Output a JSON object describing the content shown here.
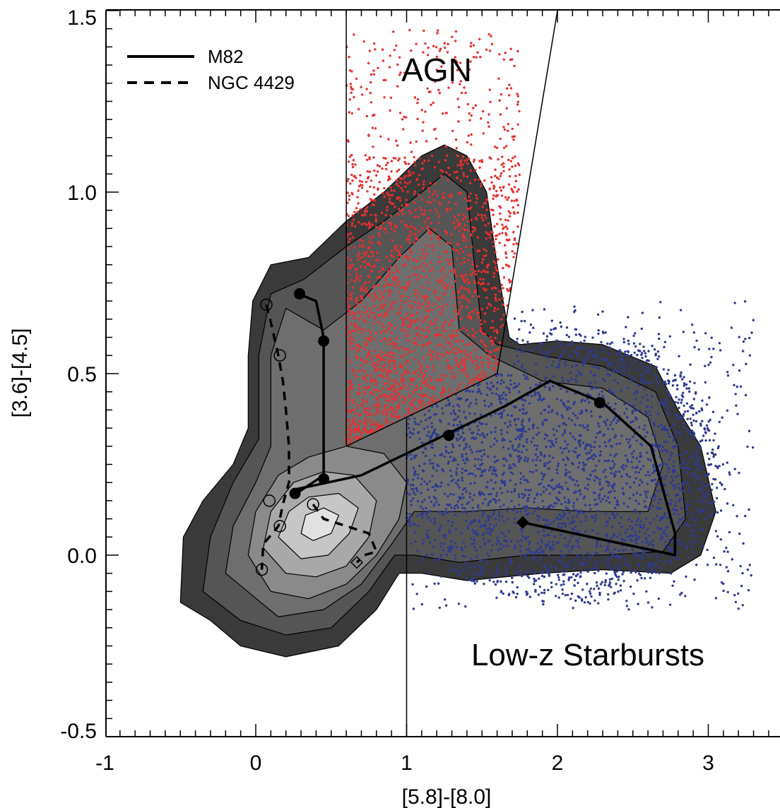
{
  "chart_data": {
    "type": "scatter",
    "xlabel": "[5.8]-[8.0]",
    "ylabel": "[3.6]-[4.5]",
    "xlim": [
      -1,
      3.5
    ],
    "ylim": [
      -0.5,
      1.5
    ],
    "x_ticks": [
      "-1",
      "0",
      "1",
      "2",
      "3"
    ],
    "y_ticks": [
      "-0.5",
      "0.0",
      "0.5",
      "1.0",
      "1.5"
    ],
    "x_tick_values": [
      -1,
      0,
      1,
      2,
      3
    ],
    "y_tick_values": [
      -0.5,
      0.0,
      0.5,
      1.0,
      1.5
    ],
    "region_labels": {
      "agn": "AGN",
      "starburst": "Low-z Starbursts"
    },
    "legend": [
      {
        "name": "M82",
        "style": "solid"
      },
      {
        "name": "NGC 4429",
        "style": "dashed"
      }
    ],
    "boundaries": [
      {
        "name": "agn-left-vertical",
        "points": [
          [
            0.6,
            0.3
          ],
          [
            0.6,
            1.5
          ]
        ]
      },
      {
        "name": "agn-steep-line",
        "points": [
          [
            1.6,
            0.5
          ],
          [
            2.0,
            1.5
          ]
        ]
      },
      {
        "name": "agn-bottom-line",
        "points": [
          [
            0.6,
            0.3
          ],
          [
            1.6,
            0.5
          ]
        ]
      },
      {
        "name": "starburst-vertical",
        "points": [
          [
            1.0,
            -0.5
          ],
          [
            1.0,
            0.38
          ]
        ]
      }
    ],
    "density_contours": {
      "colors": [
        "#3a3a3a",
        "#555555",
        "#6e6e6e",
        "#8a8a8a",
        "#a8a8a8",
        "#c6c6c6",
        "#e2e2e2"
      ],
      "levels": [
        [
          [
            -0.5,
            -0.13
          ],
          [
            -0.48,
            0.05
          ],
          [
            -0.35,
            0.15
          ],
          [
            -0.15,
            0.25
          ],
          [
            -0.05,
            0.35
          ],
          [
            -0.05,
            0.55
          ],
          [
            -0.02,
            0.7
          ],
          [
            0.1,
            0.8
          ],
          [
            0.35,
            0.82
          ],
          [
            0.6,
            0.92
          ],
          [
            0.85,
            1.0
          ],
          [
            1.1,
            1.1
          ],
          [
            1.25,
            1.13
          ],
          [
            1.4,
            1.1
          ],
          [
            1.53,
            1.0
          ],
          [
            1.6,
            0.8
          ],
          [
            1.68,
            0.6
          ],
          [
            1.75,
            0.58
          ],
          [
            2.0,
            0.59
          ],
          [
            2.3,
            0.58
          ],
          [
            2.65,
            0.52
          ],
          [
            2.8,
            0.4
          ],
          [
            2.95,
            0.3
          ],
          [
            3.05,
            0.12
          ],
          [
            2.95,
            0.0
          ],
          [
            2.75,
            -0.05
          ],
          [
            2.3,
            -0.04
          ],
          [
            1.9,
            -0.05
          ],
          [
            1.4,
            -0.07
          ],
          [
            1.1,
            -0.05
          ],
          [
            0.95,
            -0.05
          ],
          [
            0.8,
            -0.15
          ],
          [
            0.55,
            -0.25
          ],
          [
            0.2,
            -0.28
          ],
          [
            -0.1,
            -0.25
          ],
          [
            -0.3,
            -0.18
          ],
          [
            -0.5,
            -0.13
          ]
        ],
        [
          [
            -0.35,
            -0.1
          ],
          [
            -0.3,
            0.05
          ],
          [
            -0.15,
            0.2
          ],
          [
            0.02,
            0.32
          ],
          [
            0.02,
            0.55
          ],
          [
            0.1,
            0.72
          ],
          [
            0.32,
            0.76
          ],
          [
            0.6,
            0.85
          ],
          [
            0.85,
            0.92
          ],
          [
            1.1,
            1.0
          ],
          [
            1.25,
            1.05
          ],
          [
            1.4,
            1.0
          ],
          [
            1.45,
            0.8
          ],
          [
            1.5,
            0.62
          ],
          [
            1.6,
            0.58
          ],
          [
            1.9,
            0.55
          ],
          [
            2.3,
            0.52
          ],
          [
            2.65,
            0.45
          ],
          [
            2.8,
            0.3
          ],
          [
            2.85,
            0.1
          ],
          [
            2.7,
            0.01
          ],
          [
            2.3,
            0.0
          ],
          [
            1.8,
            0.0
          ],
          [
            1.35,
            -0.02
          ],
          [
            1.05,
            0.0
          ],
          [
            0.92,
            0.0
          ],
          [
            0.75,
            -0.1
          ],
          [
            0.5,
            -0.2
          ],
          [
            0.2,
            -0.22
          ],
          [
            -0.1,
            -0.18
          ],
          [
            -0.35,
            -0.1
          ]
        ],
        [
          [
            -0.2,
            -0.05
          ],
          [
            -0.15,
            0.08
          ],
          [
            0.0,
            0.2
          ],
          [
            0.1,
            0.3
          ],
          [
            0.1,
            0.55
          ],
          [
            0.2,
            0.68
          ],
          [
            0.45,
            0.62
          ],
          [
            0.7,
            0.7
          ],
          [
            0.95,
            0.82
          ],
          [
            1.15,
            0.9
          ],
          [
            1.3,
            0.85
          ],
          [
            1.35,
            0.62
          ],
          [
            1.55,
            0.55
          ],
          [
            1.9,
            0.48
          ],
          [
            2.3,
            0.46
          ],
          [
            2.6,
            0.38
          ],
          [
            2.7,
            0.25
          ],
          [
            2.6,
            0.12
          ],
          [
            2.2,
            0.12
          ],
          [
            1.8,
            0.13
          ],
          [
            1.4,
            0.12
          ],
          [
            1.05,
            0.12
          ],
          [
            0.9,
            0.03
          ],
          [
            0.7,
            -0.08
          ],
          [
            0.45,
            -0.15
          ],
          [
            0.15,
            -0.17
          ],
          [
            -0.2,
            -0.05
          ]
        ],
        [
          [
            -0.05,
            0.0
          ],
          [
            0.0,
            0.12
          ],
          [
            0.15,
            0.22
          ],
          [
            0.35,
            0.27
          ],
          [
            0.6,
            0.3
          ],
          [
            0.85,
            0.28
          ],
          [
            1.0,
            0.2
          ],
          [
            0.95,
            0.1
          ],
          [
            0.8,
            0.0
          ],
          [
            0.6,
            -0.08
          ],
          [
            0.35,
            -0.12
          ],
          [
            0.1,
            -0.1
          ],
          [
            -0.05,
            0.0
          ]
        ],
        [
          [
            0.05,
            0.02
          ],
          [
            0.1,
            0.12
          ],
          [
            0.25,
            0.2
          ],
          [
            0.45,
            0.23
          ],
          [
            0.65,
            0.22
          ],
          [
            0.8,
            0.15
          ],
          [
            0.75,
            0.05
          ],
          [
            0.6,
            -0.03
          ],
          [
            0.4,
            -0.06
          ],
          [
            0.2,
            -0.05
          ],
          [
            0.05,
            0.02
          ]
        ],
        [
          [
            0.15,
            0.05
          ],
          [
            0.22,
            0.12
          ],
          [
            0.35,
            0.16
          ],
          [
            0.55,
            0.17
          ],
          [
            0.68,
            0.13
          ],
          [
            0.62,
            0.06
          ],
          [
            0.48,
            0.0
          ],
          [
            0.3,
            -0.01
          ],
          [
            0.15,
            0.05
          ]
        ],
        [
          [
            0.3,
            0.06
          ],
          [
            0.33,
            0.11
          ],
          [
            0.45,
            0.13
          ],
          [
            0.55,
            0.11
          ],
          [
            0.5,
            0.06
          ],
          [
            0.38,
            0.04
          ],
          [
            0.3,
            0.06
          ]
        ]
      ]
    },
    "agn_points": {
      "color": "#e53030",
      "x_range": [
        0.6,
        1.75
      ],
      "y_range": [
        0.3,
        1.45
      ]
    },
    "starburst_points": {
      "color": "#2e3a92",
      "x_range": [
        1.0,
        3.3
      ],
      "y_range": [
        -0.15,
        0.68
      ]
    },
    "series": [
      {
        "name": "M82",
        "style": "solid",
        "line": [
          [
            0.28,
            0.72
          ],
          [
            0.4,
            0.7
          ],
          [
            0.45,
            0.6
          ],
          [
            0.45,
            0.22
          ],
          [
            0.27,
            0.17
          ],
          [
            0.25,
            0.18
          ],
          [
            0.7,
            0.22
          ],
          [
            1.3,
            0.34
          ],
          [
            1.65,
            0.41
          ],
          [
            1.95,
            0.48
          ],
          [
            2.3,
            0.42
          ],
          [
            2.62,
            0.3
          ],
          [
            2.78,
            0.06
          ],
          [
            2.78,
            0.0
          ],
          [
            1.77,
            0.09
          ]
        ],
        "markers": [
          [
            0.29,
            0.72
          ],
          [
            0.45,
            0.59
          ],
          [
            0.45,
            0.21
          ],
          [
            0.26,
            0.17
          ],
          [
            1.28,
            0.33
          ],
          [
            2.28,
            0.42
          ]
        ],
        "end_marker": [
          1.77,
          0.09
        ]
      },
      {
        "name": "NGC 4429",
        "style": "dashed",
        "line": [
          [
            0.07,
            0.69
          ],
          [
            0.09,
            0.66
          ],
          [
            0.15,
            0.55
          ],
          [
            0.18,
            0.48
          ],
          [
            0.2,
            0.4
          ],
          [
            0.22,
            0.3
          ],
          [
            0.22,
            0.2
          ],
          [
            0.18,
            0.14
          ],
          [
            0.15,
            0.08
          ],
          [
            0.05,
            0.03
          ],
          [
            0.04,
            -0.04
          ]
        ],
        "markers": [
          [
            0.07,
            0.69
          ],
          [
            0.16,
            0.55
          ],
          [
            0.09,
            0.15
          ],
          [
            0.16,
            0.08
          ],
          [
            0.04,
            -0.04
          ]
        ],
        "secondary_line": [
          [
            0.38,
            0.14
          ],
          [
            0.45,
            0.1
          ],
          [
            0.6,
            0.08
          ],
          [
            0.75,
            0.06
          ],
          [
            0.8,
            0.01
          ],
          [
            0.72,
            0.0
          ],
          [
            0.67,
            -0.02
          ]
        ],
        "secondary_markers": [
          [
            0.38,
            0.14
          ]
        ],
        "end_marker": [
          0.67,
          -0.02
        ]
      }
    ]
  }
}
